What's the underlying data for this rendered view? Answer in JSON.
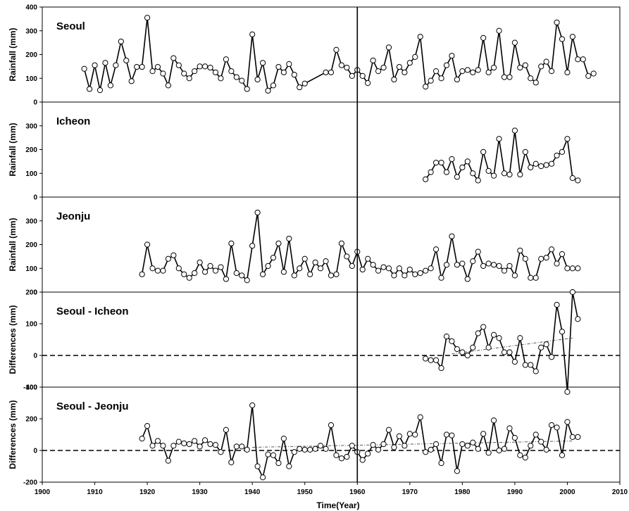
{
  "chart_data": [
    {
      "type": "line",
      "title": "Seoul",
      "ylabel": "Rainfall (mm)",
      "ylim": [
        0,
        400
      ],
      "yticks": [
        0,
        100,
        200,
        300,
        400
      ],
      "x": [
        1908,
        1909,
        1910,
        1911,
        1912,
        1913,
        1914,
        1915,
        1916,
        1917,
        1918,
        1919,
        1920,
        1921,
        1922,
        1923,
        1924,
        1925,
        1926,
        1927,
        1928,
        1929,
        1930,
        1931,
        1932,
        1933,
        1934,
        1935,
        1936,
        1937,
        1938,
        1939,
        1940,
        1941,
        1942,
        1943,
        1944,
        1945,
        1946,
        1947,
        1948,
        1949,
        1950,
        1954,
        1955,
        1956,
        1957,
        1958,
        1959,
        1960,
        1961,
        1962,
        1963,
        1964,
        1965,
        1966,
        1967,
        1968,
        1969,
        1970,
        1971,
        1972,
        1973,
        1974,
        1975,
        1976,
        1977,
        1978,
        1979,
        1980,
        1981,
        1982,
        1983,
        1984,
        1985,
        1986,
        1987,
        1988,
        1989,
        1990,
        1991,
        1992,
        1993,
        1994,
        1995,
        1996,
        1997,
        1998,
        1999,
        2000,
        2001,
        2002,
        2003,
        2004,
        2005
      ],
      "y": [
        140,
        55,
        155,
        50,
        165,
        70,
        155,
        255,
        175,
        88,
        148,
        148,
        355,
        130,
        148,
        120,
        70,
        185,
        155,
        120,
        100,
        130,
        150,
        150,
        145,
        125,
        100,
        180,
        130,
        105,
        90,
        55,
        285,
        95,
        165,
        48,
        70,
        148,
        125,
        160,
        115,
        62,
        78,
        125,
        125,
        220,
        155,
        145,
        110,
        135,
        110,
        80,
        175,
        130,
        145,
        230,
        95,
        148,
        125,
        165,
        190,
        275,
        65,
        90,
        130,
        100,
        155,
        195,
        95,
        130,
        135,
        125,
        135,
        270,
        125,
        145,
        300,
        105,
        105,
        250,
        145,
        155,
        100,
        82,
        150,
        170,
        130,
        335,
        265,
        125,
        275,
        180,
        180,
        110,
        120
      ]
    },
    {
      "type": "line",
      "title": "Icheon",
      "ylabel": "Rainfall (mm)",
      "ylim": [
        0,
        400
      ],
      "yticks": [
        0,
        100,
        200,
        300
      ],
      "x": [
        1973,
        1974,
        1975,
        1976,
        1977,
        1978,
        1979,
        1980,
        1981,
        1982,
        1983,
        1984,
        1985,
        1986,
        1987,
        1988,
        1989,
        1990,
        1991,
        1992,
        1993,
        1994,
        1995,
        1996,
        1997,
        1998,
        1999,
        2000,
        2001,
        2002
      ],
      "y": [
        75,
        105,
        145,
        145,
        105,
        160,
        85,
        125,
        150,
        100,
        70,
        190,
        110,
        90,
        245,
        100,
        95,
        280,
        95,
        190,
        125,
        140,
        130,
        135,
        140,
        175,
        190,
        245,
        80,
        70
      ]
    },
    {
      "type": "line",
      "title": "Jeonju",
      "ylabel": "Rainfall (mm)",
      "ylim": [
        0,
        400
      ],
      "yticks": [
        0,
        100,
        200,
        300
      ],
      "x": [
        1919,
        1920,
        1921,
        1922,
        1923,
        1924,
        1925,
        1926,
        1927,
        1928,
        1929,
        1930,
        1931,
        1932,
        1933,
        1934,
        1935,
        1936,
        1937,
        1938,
        1939,
        1940,
        1941,
        1942,
        1943,
        1944,
        1945,
        1946,
        1947,
        1948,
        1949,
        1950,
        1951,
        1952,
        1953,
        1954,
        1955,
        1956,
        1957,
        1958,
        1959,
        1960,
        1961,
        1962,
        1963,
        1964,
        1965,
        1966,
        1967,
        1968,
        1969,
        1970,
        1971,
        1972,
        1973,
        1974,
        1975,
        1976,
        1977,
        1978,
        1979,
        1980,
        1981,
        1982,
        1983,
        1984,
        1985,
        1986,
        1987,
        1988,
        1989,
        1990,
        1991,
        1992,
        1993,
        1994,
        1995,
        1996,
        1997,
        1998,
        1999,
        2000,
        2001,
        2002
      ],
      "y": [
        75,
        200,
        100,
        90,
        90,
        140,
        155,
        100,
        75,
        60,
        80,
        125,
        85,
        110,
        90,
        105,
        55,
        205,
        80,
        70,
        50,
        195,
        335,
        75,
        110,
        145,
        205,
        85,
        225,
        70,
        100,
        140,
        75,
        125,
        100,
        130,
        70,
        75,
        205,
        150,
        110,
        170,
        95,
        140,
        115,
        90,
        105,
        100,
        70,
        100,
        70,
        95,
        75,
        80,
        90,
        100,
        180,
        60,
        115,
        235,
        115,
        120,
        55,
        130,
        170,
        110,
        120,
        115,
        110,
        90,
        110,
        70,
        175,
        140,
        60,
        60,
        140,
        145,
        180,
        120,
        160,
        100,
        100,
        100
      ]
    },
    {
      "type": "line",
      "title": "Seoul - Icheon",
      "ylabel": "Differences (mm)",
      "ylim": [
        -100,
        200
      ],
      "yticks": [
        -100,
        0,
        100,
        200
      ],
      "x": [
        1973,
        1974,
        1975,
        1976,
        1977,
        1978,
        1979,
        1980,
        1981,
        1982,
        1983,
        1984,
        1985,
        1986,
        1987,
        1988,
        1989,
        1990,
        1991,
        1992,
        1993,
        1994,
        1995,
        1996,
        1997,
        1998,
        1999,
        2000,
        2001,
        2002
      ],
      "y": [
        -10,
        -15,
        -15,
        -40,
        60,
        45,
        20,
        10,
        0,
        25,
        70,
        90,
        25,
        65,
        55,
        10,
        10,
        -20,
        55,
        -30,
        -30,
        -50,
        25,
        35,
        -5,
        160,
        75,
        -115,
        200,
        115
      ],
      "trend": {
        "x": [
          1978,
          2001
        ],
        "y": [
          5,
          55
        ]
      }
    },
    {
      "type": "line",
      "title": "Seoul - Jeonju",
      "ylabel": "Differences (mm)",
      "ylim": [
        -200,
        400
      ],
      "yticks": [
        -200,
        0,
        200,
        400
      ],
      "x": [
        1919,
        1920,
        1921,
        1922,
        1923,
        1924,
        1925,
        1926,
        1927,
        1928,
        1929,
        1930,
        1931,
        1932,
        1933,
        1934,
        1935,
        1936,
        1937,
        1938,
        1939,
        1940,
        1941,
        1942,
        1943,
        1944,
        1945,
        1946,
        1947,
        1948,
        1949,
        1950,
        1951,
        1952,
        1953,
        1954,
        1955,
        1956,
        1957,
        1958,
        1959,
        1960,
        1961,
        1962,
        1963,
        1964,
        1965,
        1966,
        1967,
        1968,
        1969,
        1970,
        1971,
        1972,
        1973,
        1974,
        1975,
        1976,
        1977,
        1978,
        1979,
        1980,
        1981,
        1982,
        1983,
        1984,
        1985,
        1986,
        1987,
        1988,
        1989,
        1990,
        1991,
        1992,
        1993,
        1994,
        1995,
        1996,
        1997,
        1998,
        1999,
        2000,
        2001,
        2002
      ],
      "y": [
        75,
        155,
        30,
        60,
        30,
        -65,
        30,
        55,
        45,
        40,
        60,
        25,
        65,
        40,
        35,
        -10,
        130,
        -75,
        25,
        25,
        5,
        285,
        -100,
        -170,
        -25,
        -30,
        -80,
        75,
        -100,
        -10,
        10,
        5,
        5,
        10,
        30,
        10,
        160,
        -30,
        -50,
        -40,
        30,
        -10,
        -60,
        -20,
        35,
        5,
        40,
        130,
        20,
        90,
        30,
        105,
        100,
        210,
        -10,
        5,
        40,
        -80,
        100,
        95,
        -130,
        40,
        30,
        50,
        10,
        105,
        -15,
        190,
        0,
        10,
        140,
        80,
        -30,
        -45,
        30,
        100,
        55,
        5,
        160,
        145,
        -30,
        180,
        85,
        85
      ],
      "trend": {
        "x": [
          1940,
          2001
        ],
        "y": [
          20,
          60
        ]
      }
    }
  ],
  "x_axis": {
    "label": "Time(Year)",
    "xlim": [
      1900,
      2010
    ],
    "ticks": [
      1900,
      1910,
      1920,
      1930,
      1940,
      1950,
      1960,
      1970,
      1980,
      1990,
      2000,
      2010
    ]
  },
  "reference_line_year": 1960
}
